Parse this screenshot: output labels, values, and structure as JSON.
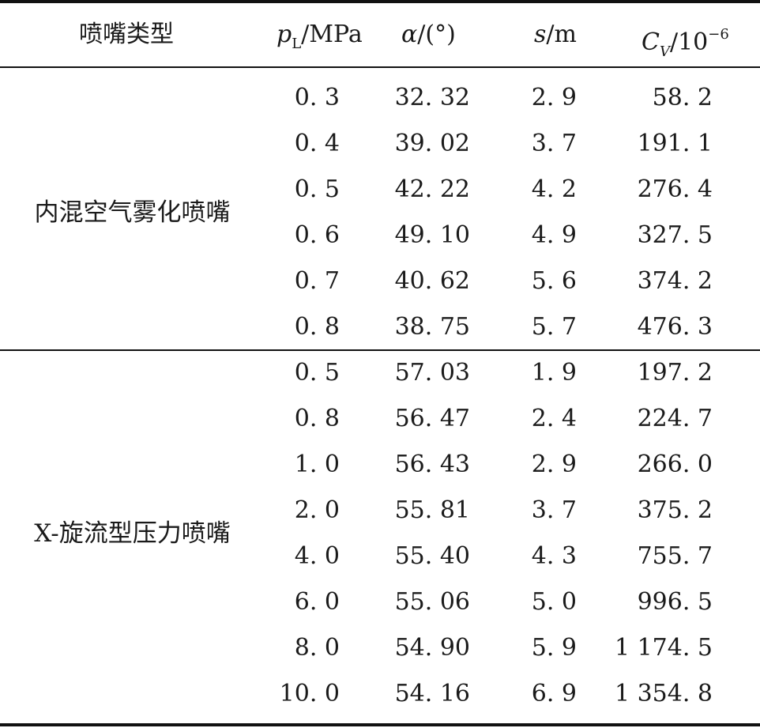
{
  "header": {
    "type_label": "喷嘴类型",
    "p": "p",
    "p_sub": "L",
    "p_unit": "/MPa",
    "alpha": "α",
    "alpha_unit": "/(°)",
    "s": "s",
    "s_unit": "/m",
    "c": "C",
    "c_sub": "V",
    "c_unit": "/10",
    "c_exp": "−6"
  },
  "groups": [
    {
      "name": "内混空气雾化喷嘴",
      "rows": [
        [
          "0. 3",
          "32. 32",
          "2. 9",
          "58. 2"
        ],
        [
          "0. 4",
          "39. 02",
          "3. 7",
          "191. 1"
        ],
        [
          "0. 5",
          "42. 22",
          "4. 2",
          "276. 4"
        ],
        [
          "0. 6",
          "49. 10",
          "4. 9",
          "327. 5"
        ],
        [
          "0. 7",
          "40. 62",
          "5. 6",
          "374. 2"
        ],
        [
          "0. 8",
          "38. 75",
          "5. 7",
          "476. 3"
        ]
      ]
    },
    {
      "name": "X-旋流型压力喷嘴",
      "rows": [
        [
          "0. 5",
          "57. 03",
          "1. 9",
          "197. 2"
        ],
        [
          "0. 8",
          "56. 47",
          "2. 4",
          "224. 7"
        ],
        [
          "1. 0",
          "56. 43",
          "2. 9",
          "266. 0"
        ],
        [
          "2. 0",
          "55. 81",
          "3. 7",
          "375. 2"
        ],
        [
          "4. 0",
          "55. 40",
          "4. 3",
          "755. 7"
        ],
        [
          "6. 0",
          "55. 06",
          "5. 0",
          "996. 5"
        ],
        [
          "8. 0",
          "54. 90",
          "5. 9",
          "1 174. 5"
        ],
        [
          "10. 0",
          "54. 16",
          "6. 9",
          "1 354. 8"
        ]
      ]
    }
  ]
}
